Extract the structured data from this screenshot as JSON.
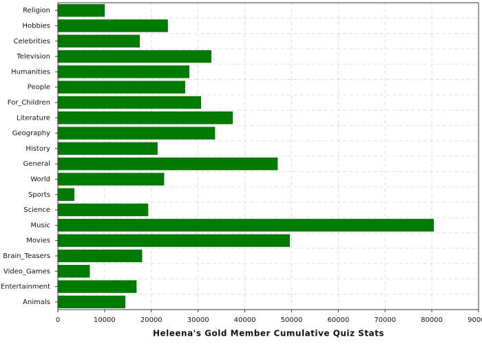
{
  "chart_data": {
    "type": "bar",
    "orientation": "horizontal",
    "x_label": "Heleena's Gold Member Cumulative Quiz Stats",
    "categories": [
      "Religion",
      "Hobbies",
      "Celebrities",
      "Television",
      "Humanities",
      "People",
      "For_Children",
      "Literature",
      "Geography",
      "History",
      "General",
      "World",
      "Sports",
      "Science",
      "Music",
      "Movies",
      "Brain_Teasers",
      "Video_Games",
      "Entertainment",
      "Animals"
    ],
    "values": [
      10000,
      23500,
      17500,
      32800,
      28100,
      27200,
      30600,
      37400,
      33600,
      21300,
      47000,
      22700,
      3500,
      19300,
      80400,
      49600,
      18000,
      6800,
      16800,
      14400
    ],
    "color": "#007a00",
    "xlim": [
      0,
      90000
    ],
    "xticks": [
      0,
      10000,
      20000,
      30000,
      40000,
      50000,
      60000,
      70000,
      80000,
      90000
    ],
    "grid": true
  }
}
